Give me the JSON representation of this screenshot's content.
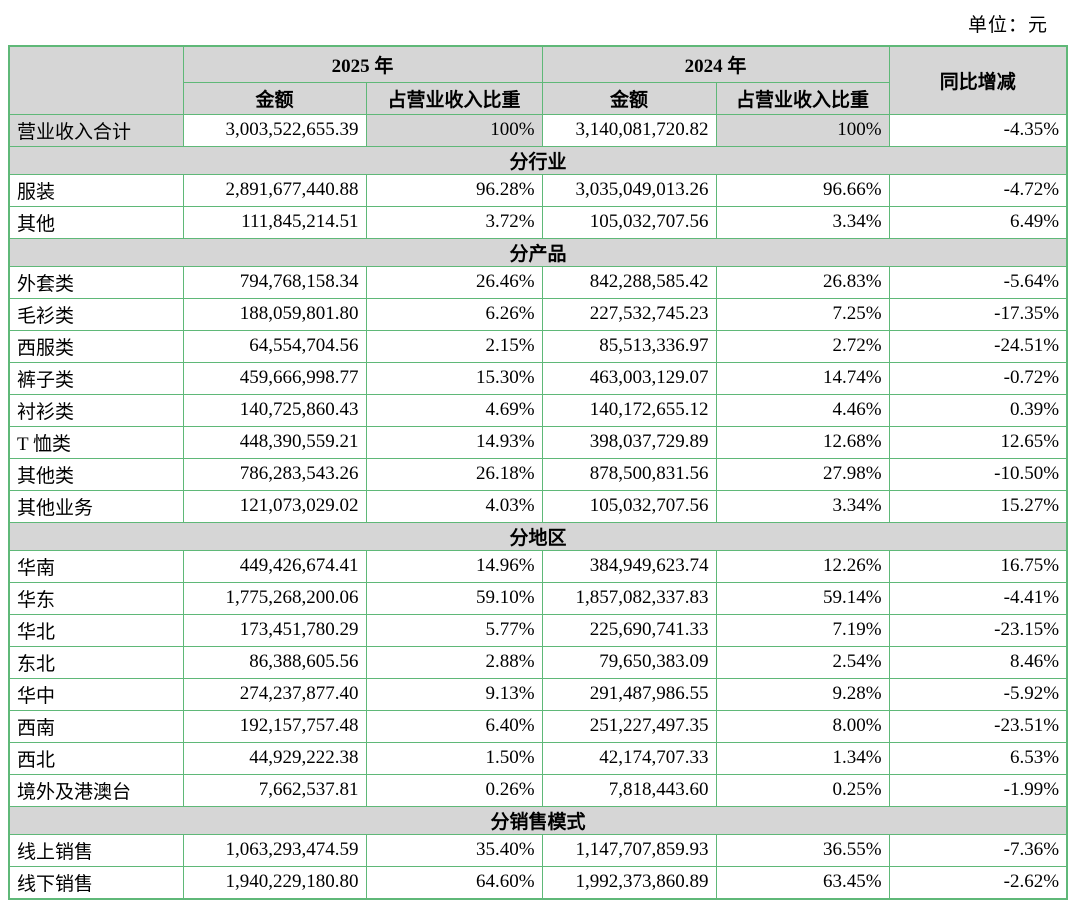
{
  "unit_label": "单位：元",
  "colors": {
    "grid_green": "#5FB878",
    "shade_gray": "#D6D6D6"
  },
  "table": {
    "headers": {
      "year_2025": "2025 年",
      "year_2024": "2024 年",
      "yoy": "同比增减",
      "amount": "金额",
      "ratio": "占营业收入比重"
    },
    "rows": [
      {
        "type": "data",
        "shaded": true,
        "label": "营业收入合计",
        "a2025": "3,003,522,655.39",
        "r2025": "100%",
        "a2024": "3,140,081,720.82",
        "r2024": "100%",
        "yoy": "-4.35%"
      },
      {
        "type": "section",
        "label": "分行业"
      },
      {
        "type": "data",
        "label": "服装",
        "a2025": "2,891,677,440.88",
        "r2025": "96.28%",
        "a2024": "3,035,049,013.26",
        "r2024": "96.66%",
        "yoy": "-4.72%"
      },
      {
        "type": "data",
        "label": "其他",
        "a2025": "111,845,214.51",
        "r2025": "3.72%",
        "a2024": "105,032,707.56",
        "r2024": "3.34%",
        "yoy": "6.49%"
      },
      {
        "type": "section",
        "label": "分产品"
      },
      {
        "type": "data",
        "label": "外套类",
        "a2025": "794,768,158.34",
        "r2025": "26.46%",
        "a2024": "842,288,585.42",
        "r2024": "26.83%",
        "yoy": "-5.64%"
      },
      {
        "type": "data",
        "label": "毛衫类",
        "a2025": "188,059,801.80",
        "r2025": "6.26%",
        "a2024": "227,532,745.23",
        "r2024": "7.25%",
        "yoy": "-17.35%"
      },
      {
        "type": "data",
        "label": "西服类",
        "a2025": "64,554,704.56",
        "r2025": "2.15%",
        "a2024": "85,513,336.97",
        "r2024": "2.72%",
        "yoy": "-24.51%"
      },
      {
        "type": "data",
        "label": "裤子类",
        "a2025": "459,666,998.77",
        "r2025": "15.30%",
        "a2024": "463,003,129.07",
        "r2024": "14.74%",
        "yoy": "-0.72%"
      },
      {
        "type": "data",
        "label": "衬衫类",
        "a2025": "140,725,860.43",
        "r2025": "4.69%",
        "a2024": "140,172,655.12",
        "r2024": "4.46%",
        "yoy": "0.39%"
      },
      {
        "type": "data",
        "label": "T 恤类",
        "a2025": "448,390,559.21",
        "r2025": "14.93%",
        "a2024": "398,037,729.89",
        "r2024": "12.68%",
        "yoy": "12.65%"
      },
      {
        "type": "data",
        "label": "其他类",
        "a2025": "786,283,543.26",
        "r2025": "26.18%",
        "a2024": "878,500,831.56",
        "r2024": "27.98%",
        "yoy": "-10.50%"
      },
      {
        "type": "data",
        "label": "其他业务",
        "a2025": "121,073,029.02",
        "r2025": "4.03%",
        "a2024": "105,032,707.56",
        "r2024": "3.34%",
        "yoy": "15.27%"
      },
      {
        "type": "section",
        "label": "分地区"
      },
      {
        "type": "data",
        "label": "华南",
        "a2025": "449,426,674.41",
        "r2025": "14.96%",
        "a2024": "384,949,623.74",
        "r2024": "12.26%",
        "yoy": "16.75%"
      },
      {
        "type": "data",
        "label": "华东",
        "a2025": "1,775,268,200.06",
        "r2025": "59.10%",
        "a2024": "1,857,082,337.83",
        "r2024": "59.14%",
        "yoy": "-4.41%"
      },
      {
        "type": "data",
        "label": "华北",
        "a2025": "173,451,780.29",
        "r2025": "5.77%",
        "a2024": "225,690,741.33",
        "r2024": "7.19%",
        "yoy": "-23.15%"
      },
      {
        "type": "data",
        "label": "东北",
        "a2025": "86,388,605.56",
        "r2025": "2.88%",
        "a2024": "79,650,383.09",
        "r2024": "2.54%",
        "yoy": "8.46%"
      },
      {
        "type": "data",
        "label": "华中",
        "a2025": "274,237,877.40",
        "r2025": "9.13%",
        "a2024": "291,487,986.55",
        "r2024": "9.28%",
        "yoy": "-5.92%"
      },
      {
        "type": "data",
        "label": "西南",
        "a2025": "192,157,757.48",
        "r2025": "6.40%",
        "a2024": "251,227,497.35",
        "r2024": "8.00%",
        "yoy": "-23.51%"
      },
      {
        "type": "data",
        "label": "西北",
        "a2025": "44,929,222.38",
        "r2025": "1.50%",
        "a2024": "42,174,707.33",
        "r2024": "1.34%",
        "yoy": "6.53%"
      },
      {
        "type": "data",
        "label": "境外及港澳台",
        "a2025": "7,662,537.81",
        "r2025": "0.26%",
        "a2024": "7,818,443.60",
        "r2024": "0.25%",
        "yoy": "-1.99%"
      },
      {
        "type": "section",
        "label": "分销售模式"
      },
      {
        "type": "data",
        "label": "线上销售",
        "a2025": "1,063,293,474.59",
        "r2025": "35.40%",
        "a2024": "1,147,707,859.93",
        "r2024": "36.55%",
        "yoy": "-7.36%"
      },
      {
        "type": "data",
        "label": "线下销售",
        "a2025": "1,940,229,180.80",
        "r2025": "64.60%",
        "a2024": "1,992,373,860.89",
        "r2024": "63.45%",
        "yoy": "-2.62%"
      }
    ]
  }
}
